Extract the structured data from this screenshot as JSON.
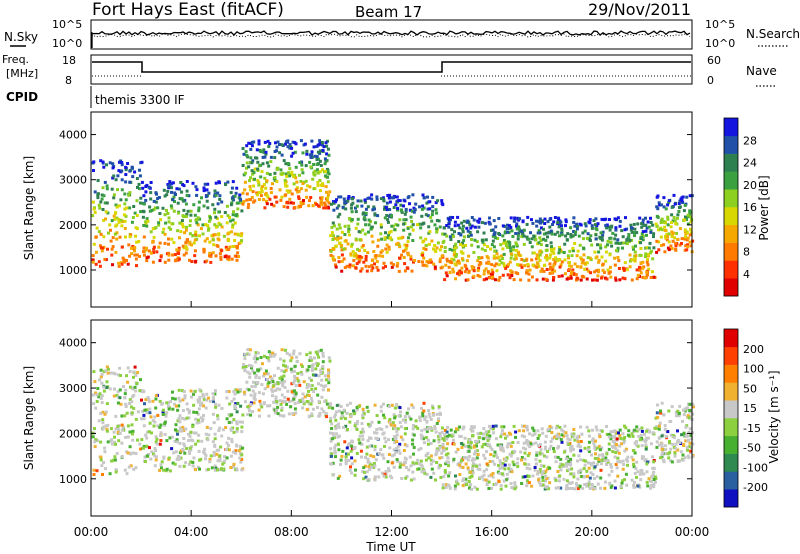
{
  "header": {
    "station": "Fort Hays East (fitACF)",
    "beam": "Beam 17",
    "date": "29/Nov/2011"
  },
  "top_panels": {
    "nsky_label": "N.Sky",
    "nsearch_label": "N.Search",
    "noise_ticks_left": [
      "10^5",
      "10^0"
    ],
    "noise_ticks_right": [
      "10^5",
      "10^0"
    ],
    "freq_label_1": "Freq.",
    "freq_label_2": "[MHz]",
    "freq_ticks": [
      "18",
      "8"
    ],
    "nave_label": "Nave",
    "nave_ticks": [
      "60",
      "0"
    ],
    "cpid_label": "CPID",
    "cpid_text": "themis 3300 IF"
  },
  "chart_data": [
    {
      "type": "heatmap",
      "name": "power",
      "ylabel": "Slant Range [km]",
      "xlabel": "Time UT",
      "x_range_hours": [
        0,
        24
      ],
      "y_range_km": [
        180,
        4500
      ],
      "yticks": [
        "1000",
        "2000",
        "3000",
        "4000"
      ],
      "colorbar_label": "Power [dB]",
      "colorbar_ticks": [
        "28",
        "24",
        "20",
        "16",
        "12",
        "8",
        "4"
      ],
      "colorbar_colors": [
        "#e00000",
        "#ff3000",
        "#ff7a00",
        "#f5a800",
        "#d8d800",
        "#8ed020",
        "#3aa040",
        "#2f8050",
        "#2050a8",
        "#1515e0"
      ],
      "echo_regions": [
        {
          "t0": 0.0,
          "t1": 2.0,
          "r0": 1100,
          "r1": 3500
        },
        {
          "t0": 2.0,
          "t1": 6.0,
          "r0": 1200,
          "r1": 3000
        },
        {
          "t0": 6.0,
          "t1": 9.5,
          "r0": 2400,
          "r1": 3900
        },
        {
          "t0": 9.5,
          "t1": 14.0,
          "r0": 1000,
          "r1": 2700
        },
        {
          "t0": 14.0,
          "t1": 22.5,
          "r0": 800,
          "r1": 2200
        },
        {
          "t0": 22.5,
          "t1": 24.0,
          "r0": 1400,
          "r1": 2700
        }
      ]
    },
    {
      "type": "heatmap",
      "name": "velocity",
      "ylabel": "Slant Range [km]",
      "xlabel": "Time UT",
      "x_range_hours": [
        0,
        24
      ],
      "y_range_km": [
        180,
        4500
      ],
      "yticks": [
        "1000",
        "2000",
        "3000",
        "4000"
      ],
      "colorbar_label": "Velocity [m s⁻¹]",
      "colorbar_ticks": [
        "200",
        "100",
        "50",
        "15",
        "-15",
        "-50",
        "-100",
        "-200"
      ],
      "colorbar_colors": [
        "#1010c0",
        "#2a60a0",
        "#2e8a50",
        "#48b030",
        "#8cd040",
        "#c8c8c8",
        "#f0b030",
        "#ff8000",
        "#ff4000",
        "#e00000"
      ],
      "echo_regions": [
        {
          "t0": 0.0,
          "t1": 2.0,
          "r0": 1100,
          "r1": 3500
        },
        {
          "t0": 2.0,
          "t1": 6.0,
          "r0": 1200,
          "r1": 3000
        },
        {
          "t0": 6.0,
          "t1": 9.5,
          "r0": 2400,
          "r1": 3900
        },
        {
          "t0": 9.5,
          "t1": 14.0,
          "r0": 1000,
          "r1": 2700
        },
        {
          "t0": 14.0,
          "t1": 22.5,
          "r0": 800,
          "r1": 2200
        },
        {
          "t0": 22.5,
          "t1": 24.0,
          "r0": 1400,
          "r1": 2700
        }
      ]
    }
  ],
  "x_axis": {
    "ticks": [
      "00:00",
      "04:00",
      "08:00",
      "12:00",
      "16:00",
      "20:00",
      "00:00"
    ],
    "label": "Time UT"
  }
}
